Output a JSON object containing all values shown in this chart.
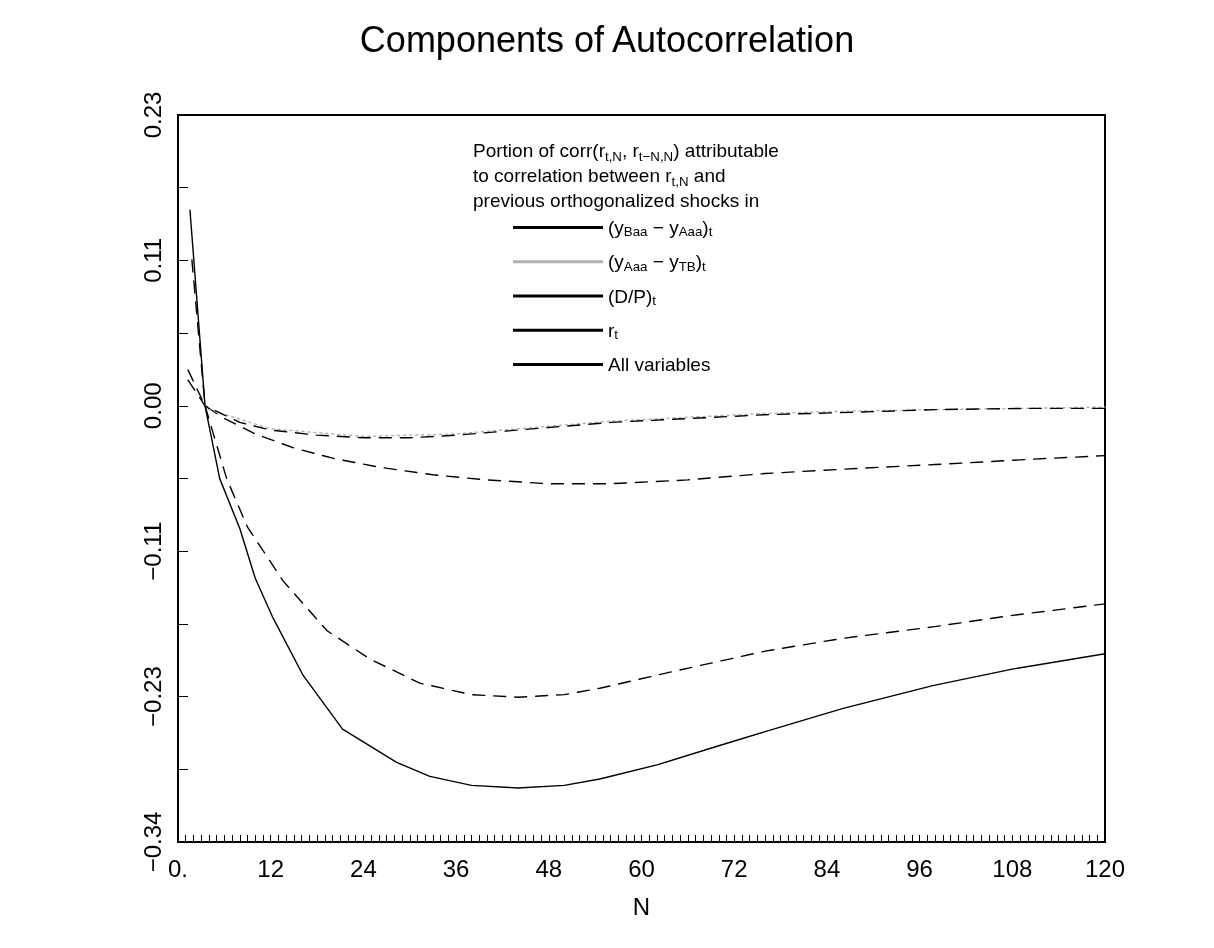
{
  "chart_data": {
    "type": "line",
    "title": "Components of Autocorrelation",
    "xlabel": "N",
    "legend_title": "Portion of corr(r$_{t,N}$, r$_{t−N,N}$) attributable\nto correlation between r$_{t,N}$ and\nprevious orthogonalized shocks in",
    "legend": "top",
    "grid": false,
    "marker": "none",
    "xlim": [
      0,
      120
    ],
    "ylim": [
      -0.3413,
      0.2275
    ],
    "xticks": [
      {
        "value": 0,
        "label": "0."
      },
      {
        "value": 1,
        "label": null
      },
      {
        "value": 2,
        "label": null
      },
      {
        "value": 3,
        "label": null
      },
      {
        "value": 4,
        "label": null
      },
      {
        "value": 5,
        "label": null
      },
      {
        "value": 6,
        "label": null
      },
      {
        "value": 7,
        "label": null
      },
      {
        "value": 8,
        "label": null
      },
      {
        "value": 9,
        "label": null
      },
      {
        "value": 10,
        "label": null
      },
      {
        "value": 11,
        "label": null
      },
      12,
      {
        "value": 13,
        "label": null
      },
      {
        "value": 14,
        "label": null
      },
      {
        "value": 15,
        "label": null
      },
      {
        "value": 16,
        "label": null
      },
      {
        "value": 17,
        "label": null
      },
      {
        "value": 18,
        "label": null
      },
      {
        "value": 19,
        "label": null
      },
      {
        "value": 20,
        "label": null
      },
      {
        "value": 21,
        "label": null
      },
      {
        "value": 22,
        "label": null
      },
      {
        "value": 23,
        "label": null
      },
      24,
      {
        "value": 25,
        "label": null
      },
      {
        "value": 26,
        "label": null
      },
      {
        "value": 27,
        "label": null
      },
      {
        "value": 28,
        "label": null
      },
      {
        "value": 29,
        "label": null
      },
      {
        "value": 30,
        "label": null
      },
      {
        "value": 31,
        "label": null
      },
      {
        "value": 32,
        "label": null
      },
      {
        "value": 33,
        "label": null
      },
      {
        "value": 34,
        "label": null
      },
      {
        "value": 35,
        "label": null
      },
      36,
      {
        "value": 37,
        "label": null
      },
      {
        "value": 38,
        "label": null
      },
      {
        "value": 39,
        "label": null
      },
      {
        "value": 40,
        "label": null
      },
      {
        "value": 41,
        "label": null
      },
      {
        "value": 42,
        "label": null
      },
      {
        "value": 43,
        "label": null
      },
      {
        "value": 44,
        "label": null
      },
      {
        "value": 45,
        "label": null
      },
      {
        "value": 46,
        "label": null
      },
      {
        "value": 47,
        "label": null
      },
      48,
      {
        "value": 49,
        "label": null
      },
      {
        "value": 50,
        "label": null
      },
      {
        "value": 51,
        "label": null
      },
      {
        "value": 52,
        "label": null
      },
      {
        "value": 53,
        "label": null
      },
      {
        "value": 54,
        "label": null
      },
      {
        "value": 55,
        "label": null
      },
      {
        "value": 56,
        "label": null
      },
      {
        "value": 57,
        "label": null
      },
      {
        "value": 58,
        "label": null
      },
      {
        "value": 59,
        "label": null
      },
      60,
      {
        "value": 61,
        "label": null
      },
      {
        "value": 62,
        "label": null
      },
      {
        "value": 63,
        "label": null
      },
      {
        "value": 64,
        "label": null
      },
      {
        "value": 65,
        "label": null
      },
      {
        "value": 66,
        "label": null
      },
      {
        "value": 67,
        "label": null
      },
      {
        "value": 68,
        "label": null
      },
      {
        "value": 69,
        "label": null
      },
      {
        "value": 70,
        "label": null
      },
      {
        "value": 71,
        "label": null
      },
      72,
      {
        "value": 73,
        "label": null
      },
      {
        "value": 74,
        "label": null
      },
      {
        "value": 75,
        "label": null
      },
      {
        "value": 76,
        "label": null
      },
      {
        "value": 77,
        "label": null
      },
      {
        "value": 78,
        "label": null
      },
      {
        "value": 79,
        "label": null
      },
      {
        "value": 80,
        "label": null
      },
      {
        "value": 81,
        "label": null
      },
      {
        "value": 82,
        "label": null
      },
      {
        "value": 83,
        "label": null
      },
      84,
      {
        "value": 85,
        "label": null
      },
      {
        "value": 86,
        "label": null
      },
      {
        "value": 87,
        "label": null
      },
      {
        "value": 88,
        "label": null
      },
      {
        "value": 89,
        "label": null
      },
      {
        "value": 90,
        "label": null
      },
      {
        "value": 91,
        "label": null
      },
      {
        "value": 92,
        "label": null
      },
      {
        "value": 93,
        "label": null
      },
      {
        "value": 94,
        "label": null
      },
      {
        "value": 95,
        "label": null
      },
      96,
      {
        "value": 97,
        "label": null
      },
      {
        "value": 98,
        "label": null
      },
      {
        "value": 99,
        "label": null
      },
      {
        "value": 100,
        "label": null
      },
      {
        "value": 101,
        "label": null
      },
      {
        "value": 102,
        "label": null
      },
      {
        "value": 103,
        "label": null
      },
      {
        "value": 104,
        "label": null
      },
      {
        "value": 105,
        "label": null
      },
      {
        "value": 106,
        "label": null
      },
      {
        "value": 107,
        "label": null
      },
      108,
      {
        "value": 109,
        "label": null
      },
      {
        "value": 110,
        "label": null
      },
      {
        "value": 111,
        "label": null
      },
      {
        "value": 112,
        "label": null
      },
      {
        "value": 113,
        "label": null
      },
      {
        "value": 114,
        "label": null
      },
      {
        "value": 115,
        "label": null
      },
      {
        "value": 116,
        "label": null
      },
      {
        "value": 117,
        "label": null
      },
      {
        "value": 118,
        "label": null
      },
      {
        "value": 119,
        "label": null
      },
      120
    ],
    "yticks": [
      {
        "value": -0.3413,
        "label": "−0.34"
      },
      {
        "value": -0.2844,
        "label": null
      },
      {
        "value": -0.2275,
        "label": "−0.23"
      },
      {
        "value": -0.1706,
        "label": null
      },
      {
        "value": -0.1138,
        "label": "−0.11"
      },
      {
        "value": -0.0569,
        "label": null
      },
      {
        "value": 0,
        "label": "0.00"
      },
      {
        "value": 0.0569,
        "label": null
      },
      {
        "value": 0.1138,
        "label": "0.11"
      },
      {
        "value": 0.1706,
        "label": null
      },
      {
        "value": 0.2275,
        "label": "0.23"
      }
    ],
    "series": [
      {
        "name": "(y$_{Baa}$ − y$_{Aaa}$)$_{t}$",
        "color": "#000000",
        "line_style": "dashed",
        "x": [
          1.3,
          3.5,
          6,
          10,
          15,
          20,
          26,
          33,
          40,
          48,
          56,
          66,
          76,
          88,
          98,
          110,
          120
        ],
        "values": [
          0.028,
          0.0,
          -0.01,
          -0.022,
          -0.033,
          -0.041,
          -0.048,
          -0.054,
          -0.058,
          -0.061,
          -0.061,
          -0.058,
          -0.053,
          -0.049,
          -0.046,
          -0.042,
          -0.039
        ]
      },
      {
        "name": "(y$_{Aaa}$ − y$_{TB}$)$_{t}$",
        "color": "#b0b0b0",
        "line_style": "dotted",
        "x": [
          4,
          12,
          24,
          36,
          48,
          56,
          66,
          76,
          88,
          98,
          110,
          120
        ],
        "values": [
          -0.003,
          -0.018,
          -0.024,
          -0.022,
          -0.016,
          -0.012,
          -0.009,
          -0.006,
          -0.004,
          -0.003,
          -0.002,
          -0.001
        ]
      },
      {
        "name": "(D/P)$_{t}$",
        "color": "#000000",
        "line_style": "dashed",
        "x": [
          1.8,
          3.5,
          6.3,
          9,
          13.6,
          19.3,
          24.8,
          31.3,
          38,
          44,
          50,
          54.6,
          64,
          76,
          86,
          97.7,
          108,
          120
        ],
        "values": [
          0.114,
          0.0,
          -0.057,
          -0.095,
          -0.137,
          -0.176,
          -0.198,
          -0.217,
          -0.226,
          -0.228,
          -0.226,
          -0.221,
          -0.208,
          -0.192,
          -0.182,
          -0.173,
          -0.164,
          -0.155
        ]
      },
      {
        "name": "r$_{t}$",
        "color": "#000000",
        "line_style": "dashed",
        "x": [
          1.3,
          3.5,
          8,
          12,
          18,
          24,
          30,
          36,
          42,
          48,
          56,
          66,
          76,
          88,
          98,
          110,
          120
        ],
        "values": [
          0.02,
          0.0,
          -0.013,
          -0.019,
          -0.023,
          -0.025,
          -0.025,
          -0.023,
          -0.02,
          -0.017,
          -0.013,
          -0.01,
          -0.007,
          -0.005,
          -0.003,
          -0.002,
          -0.002
        ]
      },
      {
        "name": "All variables",
        "color": "#000000",
        "line_style": "solid",
        "x": [
          1.55,
          3.5,
          5.4,
          8,
          10,
          12.3,
          16.2,
          21.3,
          28.3,
          32.6,
          38,
          44,
          50,
          54.6,
          62,
          70,
          76,
          86,
          97.7,
          108,
          120
        ],
        "values": [
          0.153,
          0.0,
          -0.057,
          -0.096,
          -0.135,
          -0.166,
          -0.211,
          -0.253,
          -0.279,
          -0.29,
          -0.297,
          -0.299,
          -0.297,
          -0.292,
          -0.281,
          -0.266,
          -0.255,
          -0.237,
          -0.219,
          -0.206,
          -0.194
        ]
      }
    ]
  }
}
